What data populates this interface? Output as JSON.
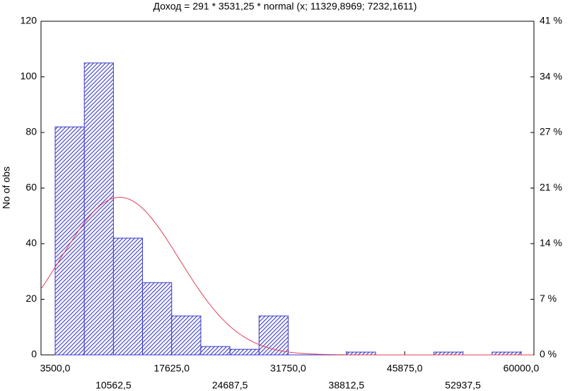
{
  "chart_data": {
    "type": "histogram",
    "title": "Доход = 291 * 3531,25 * normal (x; 11329,8969; 7232,1611)",
    "y_label": "No of obs",
    "bins": [
      3500,
      7031.25,
      10562.5,
      14093.75,
      17625,
      21156.25,
      24687.5,
      28218.75,
      31750,
      35281.25,
      38812.5,
      42343.75,
      45875,
      49406.25,
      52937.5,
      56468.75,
      60000
    ],
    "values": [
      82,
      105,
      42,
      26,
      14,
      3,
      2,
      14,
      0,
      0,
      1,
      0,
      0,
      1,
      0,
      1
    ],
    "color": "#3a3ac8",
    "fit": {
      "n": 291,
      "width": 3531.25,
      "mean": 11329.8969,
      "sd": 7232.1611,
      "color": "#e0405a"
    },
    "xlim": [
      1785,
      61545
    ],
    "xticks": [
      {
        "value": 3500,
        "label": "3500,0"
      },
      {
        "value": 10562.5,
        "label": "10562,5"
      },
      {
        "value": 17625,
        "label": "17625,0"
      },
      {
        "value": 24687.5,
        "label": "24687,5"
      },
      {
        "value": 31750,
        "label": "31750,0"
      },
      {
        "value": 38812.5,
        "label": "38812,5"
      },
      {
        "value": 45875,
        "label": "45875,0"
      },
      {
        "value": 52937.5,
        "label": "52937,5"
      },
      {
        "value": 60000,
        "label": "60000,0"
      }
    ],
    "ylim": [
      0,
      120
    ],
    "yticks": [
      0,
      20,
      40,
      60,
      80,
      100,
      120
    ],
    "y2lim": [
      0,
      41.24
    ],
    "y2ticks": [
      {
        "value": 0,
        "label": "0 %"
      },
      {
        "value": 6.87,
        "label": "7 %"
      },
      {
        "value": 13.75,
        "label": "14 %"
      },
      {
        "value": 20.62,
        "label": "21 %"
      },
      {
        "value": 27.49,
        "label": "27 %"
      },
      {
        "value": 34.36,
        "label": "34 %"
      },
      {
        "value": 41.24,
        "label": "41 %"
      }
    ]
  }
}
